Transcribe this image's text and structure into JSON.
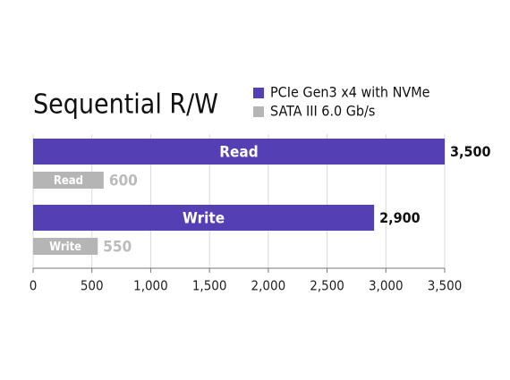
{
  "chart_data": {
    "type": "hbar",
    "title": "Sequential R/W",
    "categories": [
      "Read",
      "Write"
    ],
    "series": [
      {
        "name": "PCIe Gen3 x4 with NVMe",
        "color": "#553fb4",
        "values": [
          3500,
          2900
        ],
        "value_labels": [
          "3,500",
          "2,900"
        ]
      },
      {
        "name": "SATA III 6.0 Gb/s",
        "color": "#b5b5b5",
        "values": [
          600,
          550
        ]
      }
    ],
    "xlim": [
      0,
      3500
    ],
    "xticks": [
      0,
      500,
      {
        "value": 1000,
        "label": "1,000"
      },
      {
        "value": 1500,
        "label": "1,500"
      },
      {
        "value": 2000,
        "label": "2,000"
      },
      {
        "value": 2500,
        "label": "2,500"
      },
      {
        "value": 3000,
        "label": "3,000"
      },
      {
        "value": 3500,
        "label": "3,500"
      }
    ],
    "grid": true
  }
}
